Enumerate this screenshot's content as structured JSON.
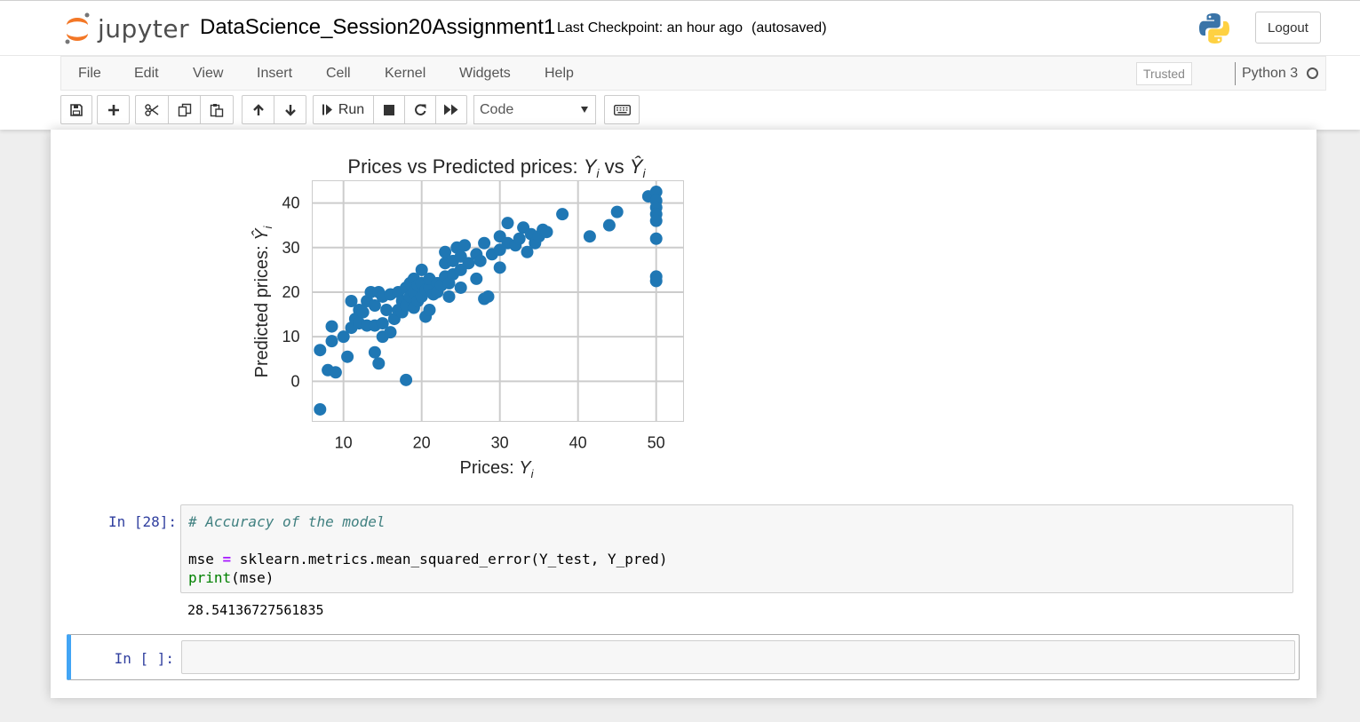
{
  "header": {
    "logo_text": "jupyter",
    "notebook_name": "DataScience_Session20Assignment1",
    "checkpoint": "Last Checkpoint: an hour ago",
    "autosave": "(autosaved)",
    "logout_label": "Logout"
  },
  "menu": {
    "items": [
      "File",
      "Edit",
      "View",
      "Insert",
      "Cell",
      "Kernel",
      "Widgets",
      "Help"
    ],
    "trusted": "Trusted",
    "kernel": "Python 3"
  },
  "toolbar": {
    "run_label": "Run",
    "cell_type": "Code",
    "icons": [
      "save-icon",
      "plus-icon",
      "cut-icon",
      "copy-icon",
      "paste-icon",
      "arrow-up-icon",
      "arrow-down-icon",
      "run-icon",
      "stop-icon",
      "restart-icon",
      "fast-forward-icon",
      "keyboard-icon"
    ]
  },
  "cells": {
    "code_prompt": "In [28]:",
    "code_lines": {
      "comment": "# Accuracy of the model",
      "line2_a": "mse ",
      "line2_op": "=",
      "line2_b": " sklearn.metrics.mean_squared_error(Y_test, Y_pred)",
      "line3_fn": "print",
      "line3_rest": "(mse)"
    },
    "output": "28.54136727561835",
    "empty_prompt": "In [ ]:"
  },
  "colors": {
    "point": "#1f77b4",
    "prompt": "#303f9f",
    "selected_border": "#42a5f5"
  },
  "chart_data": {
    "type": "scatter",
    "title": "Prices vs Predicted prices: Y_i vs Ŷ_i",
    "xlabel": "Prices: Y_i",
    "ylabel": "Predicted prices: Ŷ_i",
    "xlim": [
      6,
      53.5
    ],
    "ylim": [
      -9,
      45
    ],
    "xticks": [
      10,
      20,
      30,
      40,
      50
    ],
    "yticks": [
      0,
      10,
      20,
      30,
      40
    ],
    "grid": true,
    "series": [
      {
        "points": [
          [
            7,
            -6.3
          ],
          [
            7,
            7
          ],
          [
            8,
            2.5
          ],
          [
            8.5,
            9
          ],
          [
            9,
            2
          ],
          [
            8.5,
            12.3
          ],
          [
            10,
            10
          ],
          [
            10.5,
            5.5
          ],
          [
            11,
            12
          ],
          [
            11,
            18
          ],
          [
            11.5,
            14
          ],
          [
            12,
            13
          ],
          [
            12,
            16
          ],
          [
            12.5,
            15.5
          ],
          [
            13,
            12.5
          ],
          [
            13,
            18
          ],
          [
            13.5,
            20
          ],
          [
            14,
            17
          ],
          [
            14,
            12.5
          ],
          [
            14,
            6.5
          ],
          [
            14.5,
            20
          ],
          [
            14.5,
            4
          ],
          [
            15,
            10
          ],
          [
            15,
            13
          ],
          [
            15,
            19
          ],
          [
            15.5,
            16
          ],
          [
            16,
            11
          ],
          [
            16,
            19.5
          ],
          [
            16.5,
            14
          ],
          [
            17,
            16
          ],
          [
            17,
            20
          ],
          [
            17.5,
            15.5
          ],
          [
            17.5,
            18
          ],
          [
            18,
            0.3
          ],
          [
            18,
            17
          ],
          [
            18,
            21
          ],
          [
            18.5,
            19
          ],
          [
            18.5,
            22
          ],
          [
            19,
            16.5
          ],
          [
            19,
            20
          ],
          [
            19,
            23
          ],
          [
            19.5,
            18
          ],
          [
            19.5,
            21.5
          ],
          [
            20,
            25
          ],
          [
            20,
            19
          ],
          [
            20,
            22
          ],
          [
            20.5,
            14.5
          ],
          [
            20.5,
            20.5
          ],
          [
            21,
            16
          ],
          [
            21,
            21
          ],
          [
            21,
            23
          ],
          [
            21.5,
            19.5
          ],
          [
            22,
            22
          ],
          [
            22,
            20
          ],
          [
            22.5,
            21.5
          ],
          [
            23,
            23.5
          ],
          [
            23,
            26.5
          ],
          [
            23,
            29
          ],
          [
            23.5,
            19
          ],
          [
            23.5,
            22
          ],
          [
            24,
            27
          ],
          [
            24,
            24
          ],
          [
            24.5,
            30
          ],
          [
            25,
            21
          ],
          [
            25,
            25
          ],
          [
            25,
            28
          ],
          [
            25.5,
            30.5
          ],
          [
            26,
            26.5
          ],
          [
            27,
            28.5
          ],
          [
            27,
            23
          ],
          [
            27.5,
            27
          ],
          [
            28,
            18.5
          ],
          [
            28,
            31
          ],
          [
            28.5,
            19
          ],
          [
            29,
            28.5
          ],
          [
            30,
            25.5
          ],
          [
            30,
            29.5
          ],
          [
            30,
            32.5
          ],
          [
            31,
            35.5
          ],
          [
            31,
            31
          ],
          [
            32,
            30.5
          ],
          [
            32.5,
            32
          ],
          [
            33,
            34.5
          ],
          [
            33.5,
            29
          ],
          [
            34,
            33
          ],
          [
            34.5,
            31
          ],
          [
            35,
            32.5
          ],
          [
            35.5,
            34
          ],
          [
            36,
            33.5
          ],
          [
            38,
            37.5
          ],
          [
            41.5,
            32.5
          ],
          [
            44,
            35
          ],
          [
            45,
            38
          ],
          [
            49,
            41.5
          ],
          [
            50,
            42.5
          ],
          [
            50,
            40.5
          ],
          [
            50,
            39
          ],
          [
            50,
            37.5
          ],
          [
            50,
            36
          ],
          [
            50,
            32
          ],
          [
            50,
            23.5
          ],
          [
            50,
            22.5
          ]
        ]
      }
    ]
  }
}
